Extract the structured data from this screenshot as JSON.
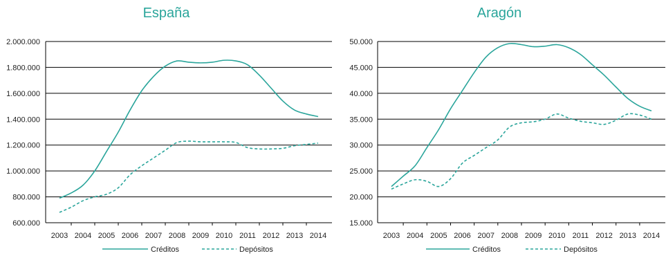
{
  "colors": {
    "series": "#2aa59b",
    "grid": "#000000"
  },
  "chart_data": [
    {
      "type": "line",
      "title": "España",
      "x": [
        2003,
        2004,
        2005,
        2006,
        2007,
        2008,
        2009,
        2010,
        2011,
        2012,
        2013,
        2014
      ],
      "x_tick_labels": [
        "2003",
        "2004",
        "2005",
        "2006",
        "2007",
        "2008",
        "2009",
        "2010",
        "2011",
        "2012",
        "2013",
        "2014"
      ],
      "ylim": [
        600000,
        2000000
      ],
      "y_ticks": [
        600000,
        800000,
        1000000,
        1200000,
        1400000,
        1600000,
        1800000,
        2000000
      ],
      "y_tick_labels": [
        "600.000",
        "800.000",
        "1.000.000",
        "1.200.000",
        "1.400.000",
        "1.600.000",
        "1.800.000",
        "2.000.000"
      ],
      "grid": true,
      "legend": "bottom",
      "series": [
        {
          "name": "Créditos",
          "style": "solid",
          "x": [
            2003,
            2003.5,
            2004,
            2004.5,
            2005,
            2005.5,
            2006,
            2006.5,
            2007,
            2007.5,
            2008,
            2008.5,
            2009,
            2009.5,
            2010,
            2010.5,
            2011,
            2011.5,
            2012,
            2012.5,
            2013,
            2013.5,
            2014
          ],
          "values": [
            790000,
            830000,
            890000,
            1000000,
            1150000,
            1300000,
            1470000,
            1620000,
            1730000,
            1810000,
            1850000,
            1840000,
            1835000,
            1840000,
            1855000,
            1850000,
            1820000,
            1740000,
            1640000,
            1540000,
            1470000,
            1440000,
            1420000
          ]
        },
        {
          "name": "Depósitos",
          "style": "dashed",
          "x": [
            2003,
            2003.5,
            2004,
            2004.5,
            2005,
            2005.5,
            2006,
            2006.5,
            2007,
            2007.5,
            2008,
            2008.5,
            2009,
            2009.5,
            2010,
            2010.5,
            2011,
            2011.5,
            2012,
            2012.5,
            2013,
            2013.5,
            2014
          ],
          "values": [
            680000,
            720000,
            770000,
            800000,
            820000,
            870000,
            970000,
            1040000,
            1100000,
            1160000,
            1220000,
            1230000,
            1225000,
            1225000,
            1225000,
            1220000,
            1180000,
            1170000,
            1170000,
            1175000,
            1195000,
            1205000,
            1215000
          ]
        }
      ]
    },
    {
      "type": "line",
      "title": "Aragón",
      "x": [
        2003,
        2004,
        2005,
        2006,
        2007,
        2008,
        2009,
        2010,
        2011,
        2012,
        2013,
        2014
      ],
      "x_tick_labels": [
        "2003",
        "2004",
        "2005",
        "2006",
        "2007",
        "2008",
        "2009",
        "2010",
        "2011",
        "2012",
        "2013",
        "2014"
      ],
      "ylim": [
        15000,
        50000
      ],
      "y_ticks": [
        15000,
        20000,
        25000,
        30000,
        35000,
        40000,
        45000,
        50000
      ],
      "y_tick_labels": [
        "15.000",
        "20.000",
        "25.000",
        "30.000",
        "35.000",
        "40.000",
        "45.000",
        "50.000"
      ],
      "grid": true,
      "legend": "bottom",
      "series": [
        {
          "name": "Créditos",
          "style": "solid",
          "x": [
            2003,
            2003.5,
            2004,
            2004.5,
            2005,
            2005.5,
            2006,
            2006.5,
            2007,
            2007.5,
            2008,
            2008.5,
            2009,
            2009.5,
            2010,
            2010.5,
            2011,
            2011.5,
            2012,
            2012.5,
            2013,
            2013.5,
            2014
          ],
          "values": [
            22000,
            24000,
            26000,
            29500,
            33000,
            37000,
            40500,
            44000,
            47000,
            48800,
            49600,
            49400,
            49000,
            49100,
            49400,
            48800,
            47500,
            45500,
            43500,
            41200,
            39000,
            37500,
            36600
          ]
        },
        {
          "name": "Depósitos",
          "style": "dashed",
          "x": [
            2003,
            2003.5,
            2004,
            2004.5,
            2005,
            2005.5,
            2006,
            2006.5,
            2007,
            2007.5,
            2008,
            2008.5,
            2009,
            2009.5,
            2010,
            2010.5,
            2011,
            2011.5,
            2012,
            2012.5,
            2013,
            2013.5,
            2014
          ],
          "values": [
            21500,
            22500,
            23300,
            23000,
            22000,
            23500,
            26500,
            28000,
            29500,
            31000,
            33500,
            34300,
            34500,
            35000,
            36000,
            35200,
            34600,
            34300,
            34000,
            34800,
            36000,
            35800,
            35000
          ]
        }
      ]
    }
  ]
}
